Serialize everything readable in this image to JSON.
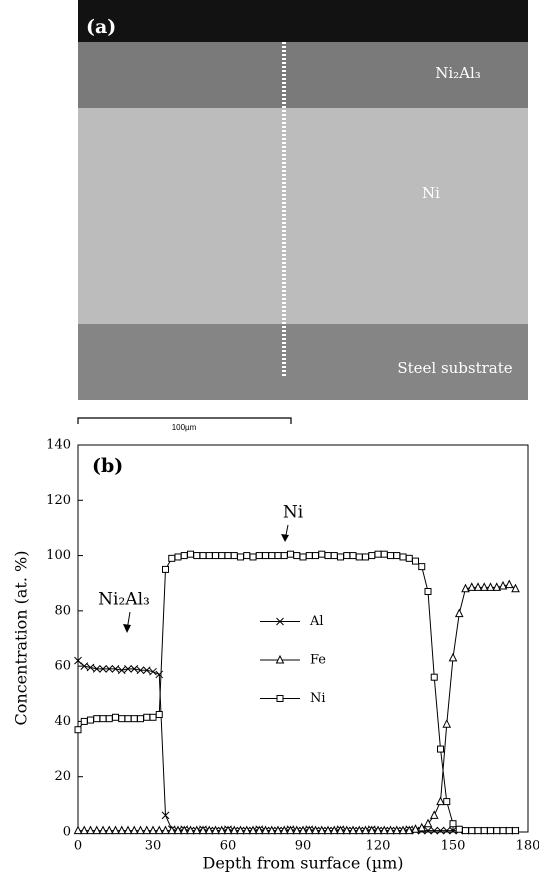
{
  "micrograph": {
    "panel_label": "(a)",
    "layer_labels": [
      "Ni₂Al₃",
      "Ni",
      "Steel substrate"
    ],
    "scale_bar": "100µm"
  },
  "chart_data": {
    "type": "line",
    "panel_label": "(b)",
    "annotations": [
      "Ni",
      "Ni₂Al₃"
    ],
    "x_label": "Depth from surface (µm)",
    "y_label": "Concentration (at. %)",
    "xlim": [
      0,
      180
    ],
    "xticks": [
      0,
      30,
      60,
      90,
      120,
      150,
      180
    ],
    "ylim": [
      0,
      140
    ],
    "yticks": [
      0,
      20,
      40,
      60,
      80,
      100,
      120,
      140
    ],
    "legend": "center",
    "x": [
      0,
      2.5,
      5,
      7.5,
      10,
      12.5,
      15,
      17.5,
      20,
      22.5,
      25,
      27.5,
      30,
      32.5,
      35,
      37.5,
      40,
      42.5,
      45,
      47.5,
      50,
      52.5,
      55,
      57.5,
      60,
      62.5,
      65,
      67.5,
      70,
      72.5,
      75,
      77.5,
      80,
      82.5,
      85,
      87.5,
      90,
      92.5,
      95,
      97.5,
      100,
      102.5,
      105,
      107.5,
      110,
      112.5,
      115,
      117.5,
      120,
      122.5,
      125,
      127.5,
      130,
      132.5,
      135,
      137.5,
      140,
      142.5,
      145,
      147.5,
      150,
      152.5,
      155,
      157.5,
      160,
      162.5,
      165,
      167.5,
      170,
      172.5,
      175
    ],
    "series": [
      {
        "name": "Al",
        "color": "#000000",
        "marker": "x",
        "values": [
          62,
          60,
          59.5,
          59,
          59,
          59,
          59,
          58.5,
          59,
          59,
          58.5,
          58.5,
          58,
          57,
          6,
          1,
          0.5,
          1,
          0.5,
          0.5,
          1,
          0.5,
          0.5,
          0.5,
          1,
          0.5,
          0.5,
          0.5,
          0.5,
          1,
          0.5,
          0.5,
          0.5,
          0.5,
          1,
          0.5,
          0.5,
          1,
          0.5,
          0.5,
          0.5,
          0.5,
          1,
          0.5,
          0.5,
          0.5,
          0.5,
          1,
          0.5,
          0.5,
          0.5,
          0.5,
          0.5,
          1,
          0.5,
          0.5,
          0.5,
          0.5,
          0.5,
          0.5,
          0.5,
          0.5,
          0.5,
          0.5,
          0.5,
          0.5,
          0.5,
          0.5,
          0.5,
          0.5,
          0.5
        ]
      },
      {
        "name": "Fe",
        "color": "#000000",
        "marker": "triangle",
        "values": [
          0.5,
          0.5,
          0.5,
          0.5,
          0.5,
          0.5,
          0.5,
          0.5,
          0.5,
          0.5,
          0.5,
          0.5,
          0.5,
          0.5,
          0.5,
          0.5,
          0.5,
          0.5,
          0.5,
          0.5,
          0.5,
          0.5,
          0.5,
          0.5,
          0.5,
          0.5,
          0.5,
          0.5,
          0.5,
          0.5,
          0.5,
          0.5,
          0.5,
          0.5,
          0.5,
          0.5,
          0.5,
          0.5,
          0.5,
          0.5,
          0.5,
          0.5,
          0.5,
          0.5,
          0.5,
          0.5,
          0.5,
          0.5,
          0.5,
          0.5,
          0.5,
          0.5,
          0.5,
          0.5,
          1,
          1.5,
          3,
          6,
          11,
          39,
          63,
          79,
          88,
          88.5,
          88.5,
          88.5,
          88.5,
          88.5,
          89,
          89.5,
          88
        ]
      },
      {
        "name": "Ni",
        "color": "#000000",
        "marker": "square",
        "values": [
          37,
          40,
          40.5,
          41,
          41,
          41,
          41.5,
          41,
          41,
          41,
          41,
          41.5,
          41.5,
          42.5,
          95,
          99,
          99.5,
          100,
          100.5,
          100,
          100,
          100,
          100,
          100,
          100,
          100,
          99.5,
          100,
          99.5,
          100,
          100,
          100,
          100,
          100,
          100.5,
          100,
          99.5,
          100,
          100,
          100.5,
          100,
          100,
          99.5,
          100,
          100,
          99.5,
          99.5,
          100,
          100.5,
          100.5,
          100,
          100,
          99.5,
          99,
          98,
          96,
          87,
          56,
          30,
          11,
          3,
          1,
          0.5,
          0.5,
          0.5,
          0.5,
          0.5,
          0.5,
          0.5,
          0.5,
          0.5
        ]
      }
    ]
  }
}
